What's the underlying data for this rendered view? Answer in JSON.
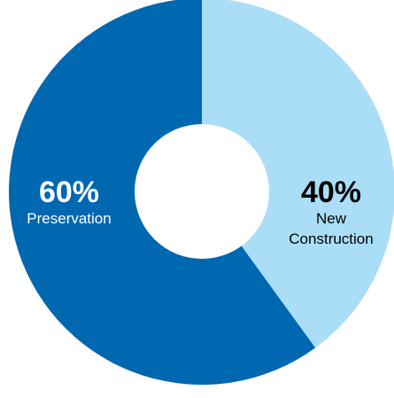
{
  "chart_data": {
    "type": "pie",
    "variant": "donut",
    "slices": [
      {
        "label": "New Construction",
        "label_lines": [
          "New",
          "Construction"
        ],
        "value": 40,
        "value_label": "40%",
        "color": "#aadef7",
        "text_color": "#000000"
      },
      {
        "label": "Preservation",
        "label_lines": [
          "Preservation"
        ],
        "value": 60,
        "value_label": "60%",
        "color": "#0067b1",
        "text_color": "#ffffff"
      }
    ],
    "start_angle": "12 o'clock",
    "direction": "clockwise",
    "legend": "none",
    "background": "#ffffff"
  }
}
